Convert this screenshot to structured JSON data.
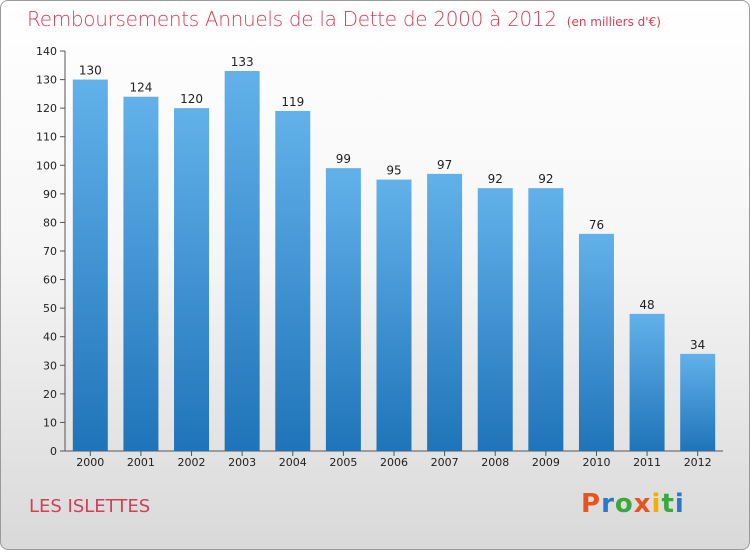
{
  "title": "Remboursements Annuels de la Dette de 2000 à 2012",
  "unit_note": "(en milliers d'€)",
  "commune": "LES ISLETTES",
  "logo_text": "Proxiti",
  "colors": {
    "title": "#d33f55",
    "bar_top": "#62b1ea",
    "bar_bottom": "#1f74b9",
    "logo_letters": [
      "#e8541e",
      "#2a78c6",
      "#3aa83a",
      "#e8541e",
      "#f0b000",
      "#3aa83a",
      "#2a78c6"
    ]
  },
  "chart_data": {
    "type": "bar",
    "title": "Remboursements Annuels de la Dette de 2000 à 2012",
    "categories": [
      "2000",
      "2001",
      "2002",
      "2003",
      "2004",
      "2005",
      "2006",
      "2007",
      "2008",
      "2009",
      "2010",
      "2011",
      "2012"
    ],
    "values": [
      130,
      124,
      120,
      133,
      119,
      99,
      95,
      97,
      92,
      92,
      76,
      48,
      34
    ],
    "ylim": [
      0,
      140
    ],
    "yticks": [
      0,
      10,
      20,
      30,
      40,
      50,
      60,
      70,
      80,
      90,
      100,
      110,
      120,
      130,
      140
    ],
    "grid": false,
    "legend": "none"
  }
}
